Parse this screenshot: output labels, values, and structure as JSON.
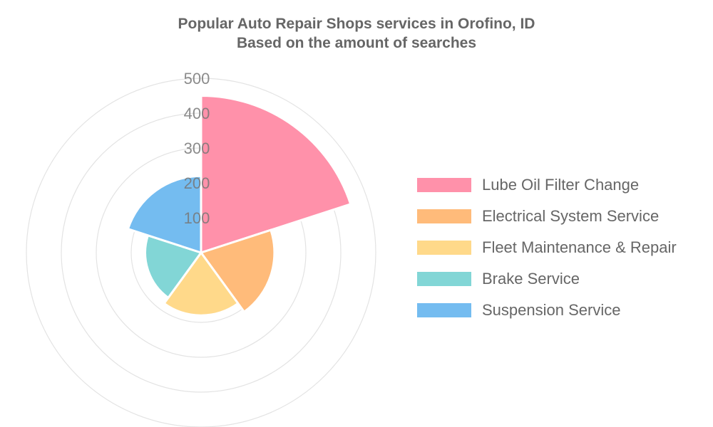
{
  "title": {
    "line1": "Popular Auto Repair Shops services in Orofino, ID",
    "line2": "Based on the amount of searches"
  },
  "chart_data": {
    "type": "polarArea",
    "title": "Popular Auto Repair Shops services in Orofino, ID",
    "subtitle": "Based on the amount of searches",
    "categories": [
      "Lube Oil Filter Change",
      "Electrical System Service",
      "Fleet Maintenance & Repair",
      "Brake Service",
      "Suspension Service"
    ],
    "values": [
      450,
      210,
      180,
      160,
      220
    ],
    "colors": [
      "#ff91aa",
      "#ffbb7a",
      "#ffd98a",
      "#82d6d6",
      "#74bcf0"
    ],
    "r_range": [
      0,
      500
    ],
    "r_ticks": [
      "100",
      "200",
      "300",
      "400",
      "500"
    ],
    "grid": true,
    "legend_position": "right"
  }
}
